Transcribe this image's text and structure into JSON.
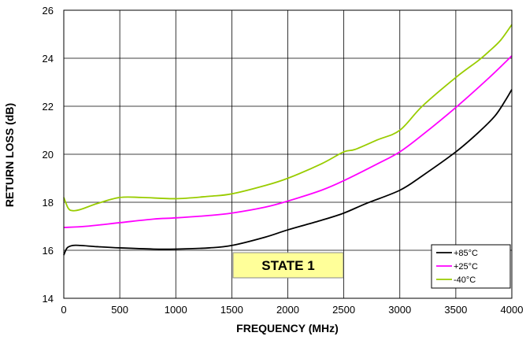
{
  "chart_data": {
    "type": "line",
    "xlabel": "FREQUENCY (MHz)",
    "ylabel": "RETURN LOSS (dB)",
    "xlim": [
      0,
      4000
    ],
    "ylim": [
      14,
      26
    ],
    "xticks": [
      "0",
      "500",
      "1000",
      "1500",
      "2000",
      "2500",
      "3000",
      "3500",
      "4000"
    ],
    "yticks": [
      "14",
      "16",
      "18",
      "20",
      "22",
      "24",
      "26"
    ],
    "grid": true,
    "legend_position": "bottom-right",
    "annotation": "STATE 1",
    "series": [
      {
        "name": "+85°C",
        "color": "#000000",
        "x": [
          0,
          30,
          80,
          150,
          300,
          500,
          800,
          1000,
          1300,
          1500,
          1800,
          2000,
          2300,
          2500,
          2700,
          3000,
          3200,
          3500,
          3700,
          3850,
          3950,
          4000
        ],
        "y": [
          15.8,
          16.1,
          16.2,
          16.2,
          16.15,
          16.1,
          16.05,
          16.05,
          16.1,
          16.2,
          16.55,
          16.85,
          17.25,
          17.55,
          17.95,
          18.5,
          19.1,
          20.1,
          20.9,
          21.6,
          22.3,
          22.7
        ]
      },
      {
        "name": "+25°C",
        "color": "#ff00ff",
        "x": [
          0,
          200,
          500,
          800,
          1000,
          1300,
          1500,
          1800,
          2000,
          2300,
          2500,
          2800,
          3000,
          3200,
          3500,
          3800,
          4000
        ],
        "y": [
          16.95,
          17.0,
          17.15,
          17.3,
          17.35,
          17.45,
          17.55,
          17.8,
          18.05,
          18.5,
          18.9,
          19.6,
          20.1,
          20.8,
          21.95,
          23.2,
          24.1
        ]
      },
      {
        "name": "-40°C",
        "color": "#99cc00",
        "x": [
          0,
          40,
          80,
          150,
          300,
          500,
          700,
          1000,
          1300,
          1500,
          1800,
          2000,
          2300,
          2500,
          2600,
          2800,
          3000,
          3200,
          3500,
          3700,
          3800,
          3900,
          4000
        ],
        "y": [
          18.2,
          17.75,
          17.65,
          17.7,
          17.95,
          18.2,
          18.2,
          18.15,
          18.25,
          18.35,
          18.7,
          19.0,
          19.6,
          20.1,
          20.2,
          20.6,
          21.0,
          22.0,
          23.2,
          23.9,
          24.3,
          24.75,
          25.4
        ]
      }
    ]
  }
}
